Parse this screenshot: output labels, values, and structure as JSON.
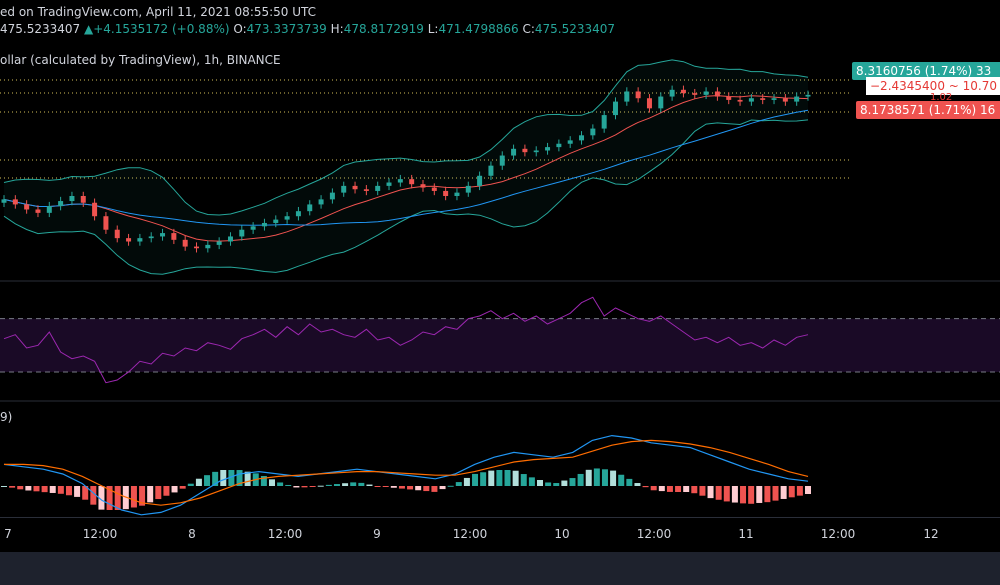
{
  "header": {
    "published": "ed on TradingView.com, April 11, 2021 08:55:50 UTC",
    "change_label_price": "475.5233407",
    "change_arrow": "▲",
    "change_value": "+4.1535172 (+0.88%)",
    "o_label": "O:",
    "o_value": "473.3373739",
    "h_label": "H:",
    "h_value": "478.8172919",
    "l_label": "L:",
    "l_value": "471.4798866",
    "c_label": "C:",
    "c_value": "475.5233407",
    "symbol_line": "ollar (calculated by TradingView), 1h, BINANCE"
  },
  "price_tags": {
    "green": "8.3160756 (1.74%)  33",
    "red_a": "−2.4345400 ~ 10.70",
    "small": "1.02",
    "red_b": "8.1738571 (1.71%)  16"
  },
  "time_axis": {
    "ticks": [
      "7",
      "12:00",
      "8",
      "12:00",
      "9",
      "12:00",
      "10",
      "12:00",
      "11",
      "12:00",
      "12"
    ]
  },
  "macd_label": "9)",
  "colors": {
    "up": "#26a69a",
    "down": "#ef5350",
    "bb_upper": "#26a69a",
    "bb_mid": "#ef5350",
    "ma_blue": "#2196f3",
    "rsi": "#9c27b0",
    "macd": "#2196f3",
    "signal": "#ff6d00"
  },
  "chart_data": [
    {
      "type": "line",
      "title": "",
      "series": [
        {
          "name": "",
          "values": [
            0.58,
            0.55,
            0.52,
            0.5,
            0.54,
            0.57,
            0.6,
            0.56,
            0.48,
            0.4,
            0.35,
            0.33,
            0.35,
            0.36,
            0.38,
            0.34,
            0.3,
            0.29,
            0.31,
            0.33,
            0.36,
            0.4,
            0.42,
            0.44,
            0.46,
            0.48,
            0.51,
            0.55,
            0.58,
            0.62,
            0.66,
            0.64,
            0.63,
            0.66,
            0.68,
            0.7,
            0.67,
            0.65,
            0.63,
            0.6,
            0.62,
            0.66,
            0.72,
            0.78,
            0.84,
            0.88,
            0.86,
            0.87,
            0.89,
            0.91,
            0.93,
            0.96,
            1.0,
            1.08,
            1.16,
            1.22,
            1.18,
            1.12,
            1.19,
            1.23,
            1.21,
            1.2,
            1.22,
            1.19,
            1.17,
            1.16,
            1.18,
            1.17,
            1.18,
            1.16,
            1.19,
            1.2
          ]
        }
      ]
    },
    {
      "type": "line",
      "title": "",
      "series": [
        {
          "name": "",
          "values": [
            55,
            58,
            48,
            50,
            60,
            45,
            40,
            42,
            38,
            22,
            24,
            30,
            38,
            36,
            44,
            42,
            48,
            46,
            52,
            50,
            47,
            55,
            58,
            62,
            56,
            64,
            58,
            66,
            60,
            62,
            58,
            56,
            62,
            54,
            56,
            50,
            54,
            60,
            58,
            64,
            62,
            70,
            72,
            76,
            70,
            74,
            68,
            72,
            66,
            70,
            74,
            82,
            86,
            72,
            78,
            74,
            70,
            68,
            72,
            66,
            60,
            54,
            56,
            52,
            56,
            50,
            52,
            48,
            54,
            50,
            56,
            58
          ]
        }
      ]
    },
    {
      "type": "line",
      "title": "",
      "series": [
        {
          "name": "",
          "values": [
            0.9,
            0.8,
            0.7,
            0.5,
            0.1,
            -0.6,
            -1.0,
            -1.2,
            -1.1,
            -0.8,
            -0.3,
            0.2,
            0.5,
            0.6,
            0.5,
            0.4,
            0.5,
            0.6,
            0.7,
            0.6,
            0.5,
            0.4,
            0.3,
            0.5,
            0.9,
            1.2,
            1.4,
            1.3,
            1.2,
            1.4,
            1.9,
            2.1,
            2.0,
            1.8,
            1.7,
            1.6,
            1.3,
            1.0,
            0.7,
            0.5,
            0.3,
            0.2
          ]
        },
        {
          "name": "",
          "values": [
            0.9,
            0.9,
            0.85,
            0.7,
            0.4,
            0.0,
            -0.4,
            -0.7,
            -0.8,
            -0.7,
            -0.5,
            -0.2,
            0.1,
            0.3,
            0.4,
            0.45,
            0.5,
            0.55,
            0.6,
            0.6,
            0.55,
            0.5,
            0.45,
            0.45,
            0.6,
            0.8,
            1.0,
            1.1,
            1.15,
            1.2,
            1.45,
            1.7,
            1.85,
            1.9,
            1.85,
            1.75,
            1.6,
            1.4,
            1.15,
            0.9,
            0.6,
            0.4
          ]
        }
      ]
    }
  ]
}
